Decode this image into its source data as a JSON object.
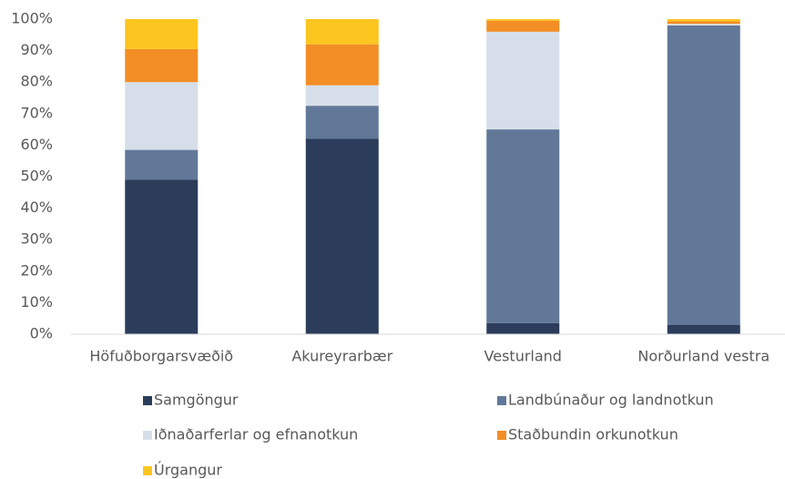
{
  "chart_data": {
    "type": "stacked_bar",
    "categories": [
      "Höfuðborgarsvæðið",
      "Akureyrarbær",
      "Vesturland",
      "Norðurland vestra"
    ],
    "series": [
      {
        "name": "Samgöngur",
        "color": "#2b3d5b",
        "values": [
          49,
          62,
          3.5,
          3
        ]
      },
      {
        "name": "Landbúnaður og landnotkun",
        "color": "#627898",
        "values": [
          9.5,
          10.5,
          61.5,
          95
        ]
      },
      {
        "name": "Iðnaðarferlar og efnanotkun",
        "color": "#d6dfe9",
        "values": [
          21.5,
          6.5,
          31,
          0.5
        ]
      },
      {
        "name": "Staðbundin orkunotkun",
        "color": "#f28e25",
        "values": [
          10.5,
          13,
          3.5,
          0.8
        ]
      },
      {
        "name": "Úrgangur",
        "color": "#fdc51f",
        "values": [
          9.5,
          8,
          0.5,
          0.7
        ]
      }
    ],
    "ylim": [
      0,
      100
    ],
    "yticks": [
      {
        "value": 0,
        "label": "0%"
      },
      {
        "value": 10,
        "label": "10%"
      },
      {
        "value": 20,
        "label": "20%"
      },
      {
        "value": 30,
        "label": "30%"
      },
      {
        "value": 40,
        "label": "40%"
      },
      {
        "value": 50,
        "label": "50%"
      },
      {
        "value": 60,
        "label": "60%"
      },
      {
        "value": 70,
        "label": "70%"
      },
      {
        "value": 80,
        "label": "80%"
      },
      {
        "value": 90,
        "label": "90%"
      },
      {
        "value": 100,
        "label": "100%"
      }
    ],
    "grid": false
  }
}
